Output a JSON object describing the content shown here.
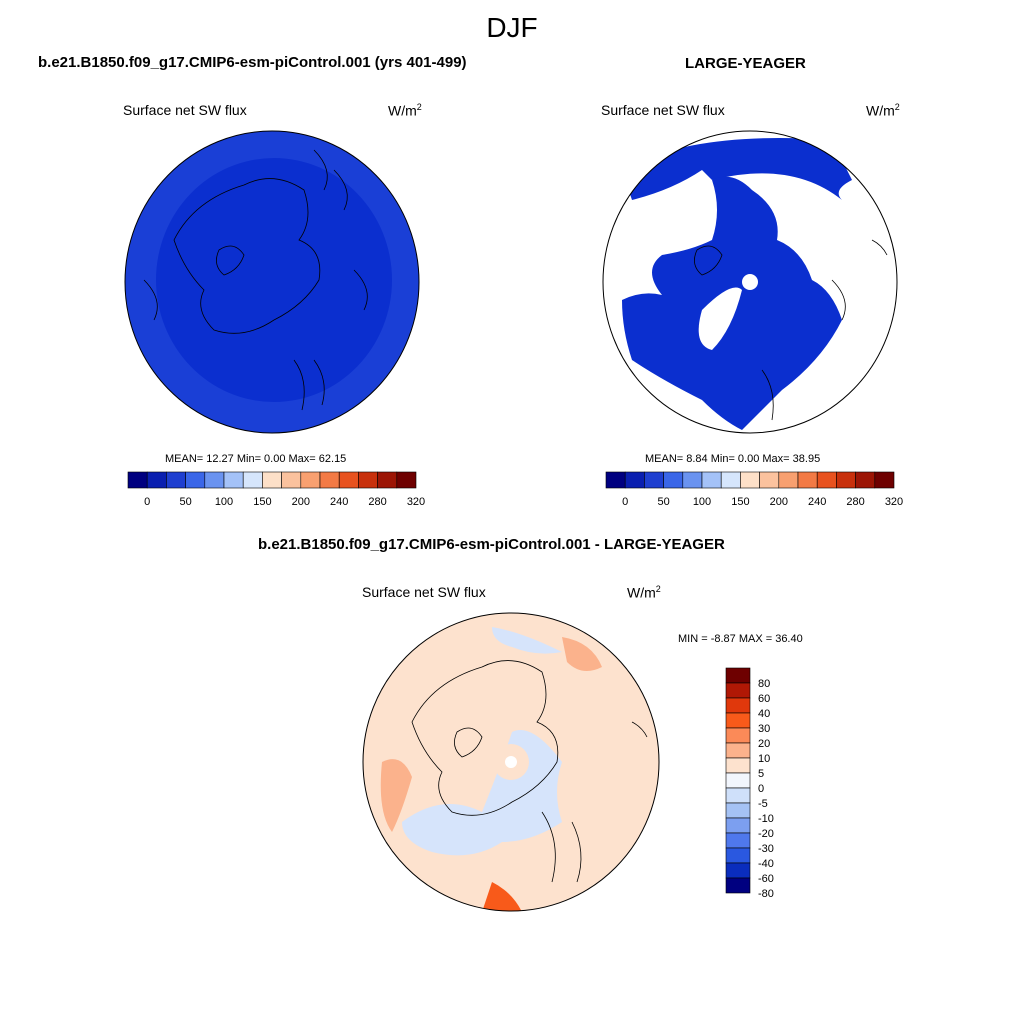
{
  "season": "DJF",
  "top_left": {
    "title": "b.e21.B1850.f09_g17.CMIP6-esm-piControl.001 (yrs 401-499)",
    "field": "Surface net SW flux",
    "units": "W/m",
    "units_exp": "2",
    "stats": "MEAN=  12.27  Min=   0.00  Max=  62.15"
  },
  "top_right": {
    "title": "LARGE-YEAGER",
    "field": "Surface net SW flux",
    "units": "W/m",
    "units_exp": "2",
    "stats": "MEAN=   8.84  Min=   0.00  Max=  38.95"
  },
  "bottom": {
    "title": "b.e21.B1850.f09_g17.CMIP6-esm-piControl.001 - LARGE-YEAGER",
    "field": "Surface net SW flux",
    "units": "W/m",
    "units_exp": "2",
    "stats": "MIN =  -8.87 MAX =  36.40"
  },
  "abs_colorbar": {
    "colors": [
      "#000080",
      "#0a1fb0",
      "#1f3fd0",
      "#3a66e8",
      "#6a93f0",
      "#a4c2f8",
      "#d6e6fc",
      "#fde0c8",
      "#fbc29e",
      "#f8a070",
      "#f37a45",
      "#e8521f",
      "#c8300c",
      "#9c1505",
      "#6e0000"
    ],
    "tick_labels": [
      "0",
      "50",
      "100",
      "150",
      "200",
      "240",
      "280",
      "320"
    ]
  },
  "diff_colorbar": {
    "colors": [
      "#6e0000",
      "#b01805",
      "#e0380c",
      "#f85a1a",
      "#fb8a58",
      "#fbb28c",
      "#fde2ce",
      "#f2f6fd",
      "#cfe0fa",
      "#a5c2f4",
      "#7c9ff0",
      "#4f78ec",
      "#2a58e0",
      "#0a2dbd",
      "#000080"
    ],
    "tick_labels": [
      "80",
      "60",
      "40",
      "30",
      "20",
      "10",
      "5",
      "0",
      "-5",
      "-10",
      "-20",
      "-30",
      "-40",
      "-60",
      "-80"
    ]
  },
  "colors": {
    "ocean_blue": "#1a3fd6",
    "ocean_blue_dark": "#0b2fcf",
    "coast": "#000000",
    "diff_pos": "#fde2ce",
    "diff_neg": "#d6e4fb"
  }
}
